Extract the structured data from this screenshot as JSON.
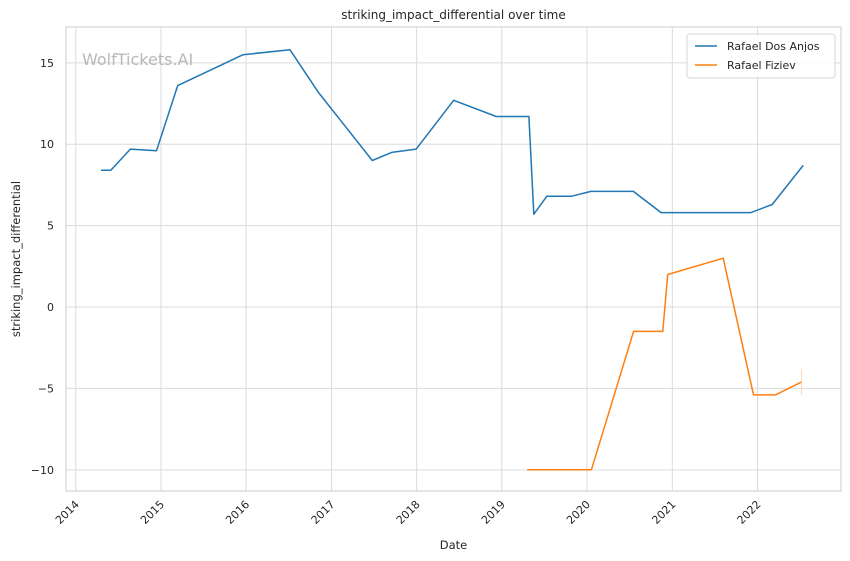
{
  "watermark": "WolfTickets.AI",
  "chart_data": {
    "type": "line",
    "title": "striking_impact_differential over time",
    "xlabel": "Date",
    "ylabel": "striking_impact_differential",
    "xlim": [
      "2013-11-20",
      "2022-12-25"
    ],
    "ylim": [
      -11.3,
      17.2
    ],
    "x_ticks": [
      "2014",
      "2015",
      "2016",
      "2017",
      "2018",
      "2019",
      "2020",
      "2021",
      "2022"
    ],
    "y_ticks": [
      -10,
      -5,
      0,
      5,
      10,
      15
    ],
    "grid": true,
    "legend_position": "top-right",
    "series": [
      {
        "name": "Rafael Dos Anjos",
        "color": "#1f77b4",
        "points": [
          [
            "2014-04-19",
            8.4
          ],
          [
            "2014-05-31",
            8.4
          ],
          [
            "2014-08-23",
            9.7
          ],
          [
            "2014-12-13",
            9.6
          ],
          [
            "2015-03-14",
            13.6
          ],
          [
            "2015-12-19",
            15.5
          ],
          [
            "2016-07-07",
            15.8
          ],
          [
            "2016-11-05",
            13.2
          ],
          [
            "2017-06-25",
            9.0
          ],
          [
            "2017-09-16",
            9.5
          ],
          [
            "2017-12-30",
            9.7
          ],
          [
            "2018-06-09",
            12.7
          ],
          [
            "2018-12-08",
            11.7
          ],
          [
            "2019-04-27",
            11.7
          ],
          [
            "2019-05-18",
            5.7
          ],
          [
            "2019-07-13",
            6.8
          ],
          [
            "2019-10-26",
            6.8
          ],
          [
            "2020-01-18",
            7.1
          ],
          [
            "2020-07-18",
            7.1
          ],
          [
            "2020-11-14",
            5.8
          ],
          [
            "2021-12-04",
            5.8
          ],
          [
            "2022-03-05",
            6.3
          ],
          [
            "2022-07-16",
            8.7
          ]
        ]
      },
      {
        "name": "Rafael Fiziev",
        "color": "#ff7f0e",
        "points": [
          [
            "2019-04-20",
            -10.0
          ],
          [
            "2020-01-20",
            -10.0
          ],
          [
            "2020-07-19",
            -1.5
          ],
          [
            "2020-11-21",
            -1.5
          ],
          [
            "2020-12-12",
            2.0
          ],
          [
            "2021-08-07",
            3.0
          ],
          [
            "2021-12-15",
            -5.4
          ],
          [
            "2022-03-19",
            -5.4
          ],
          [
            "2022-07-09",
            -4.6
          ]
        ]
      }
    ]
  }
}
